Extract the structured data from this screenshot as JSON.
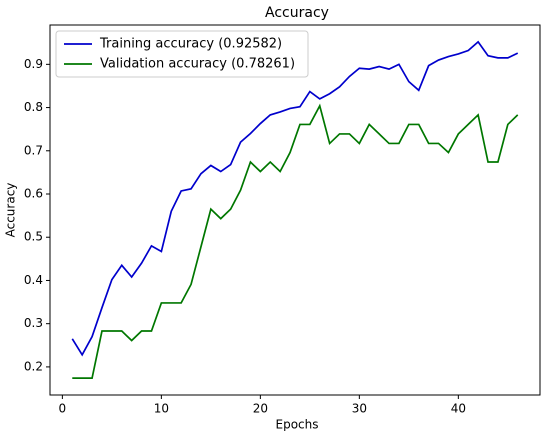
{
  "chart_data": {
    "type": "line",
    "title": "Accuracy",
    "x_label": "Epochs",
    "y_label": "Accuracy",
    "x": [
      1,
      2,
      3,
      4,
      5,
      6,
      7,
      8,
      9,
      10,
      11,
      12,
      13,
      14,
      15,
      16,
      17,
      18,
      19,
      20,
      21,
      22,
      23,
      24,
      25,
      26,
      27,
      28,
      29,
      30,
      31,
      32,
      33,
      34,
      35,
      36,
      37,
      38,
      39,
      40,
      41,
      42,
      43,
      44,
      45,
      46
    ],
    "series": [
      {
        "name": "Training accuracy (0.92582)",
        "color": "#0000cc",
        "values": [
          0.265,
          0.228,
          0.27,
          0.337,
          0.402,
          0.435,
          0.408,
          0.44,
          0.48,
          0.467,
          0.56,
          0.607,
          0.612,
          0.647,
          0.666,
          0.652,
          0.668,
          0.72,
          0.74,
          0.763,
          0.783,
          0.79,
          0.798,
          0.802,
          0.837,
          0.82,
          0.832,
          0.848,
          0.872,
          0.891,
          0.889,
          0.895,
          0.889,
          0.9,
          0.86,
          0.84,
          0.897,
          0.91,
          0.918,
          0.924,
          0.932,
          0.952,
          0.92,
          0.915,
          0.915,
          0.926
        ]
      },
      {
        "name": "Validation accuracy (0.78261)",
        "color": "#007700",
        "values": [
          0.174,
          0.174,
          0.174,
          0.283,
          0.283,
          0.283,
          0.261,
          0.283,
          0.283,
          0.348,
          0.348,
          0.348,
          0.391,
          0.478,
          0.565,
          0.543,
          0.565,
          0.609,
          0.674,
          0.652,
          0.674,
          0.652,
          0.696,
          0.761,
          0.761,
          0.804,
          0.717,
          0.739,
          0.739,
          0.717,
          0.761,
          0.739,
          0.717,
          0.717,
          0.761,
          0.761,
          0.717,
          0.717,
          0.696,
          0.739,
          0.761,
          0.783,
          0.674,
          0.674,
          0.761,
          0.783
        ]
      }
    ],
    "xlim": [
      -1.25,
      48.25
    ],
    "xticks": [
      0,
      10,
      20,
      30,
      40
    ],
    "ylim": [
      0.135,
      0.991
    ],
    "yticks": [
      0.2,
      0.3,
      0.4,
      0.5,
      0.6,
      0.7,
      0.8,
      0.9
    ],
    "legend": "upper left"
  }
}
